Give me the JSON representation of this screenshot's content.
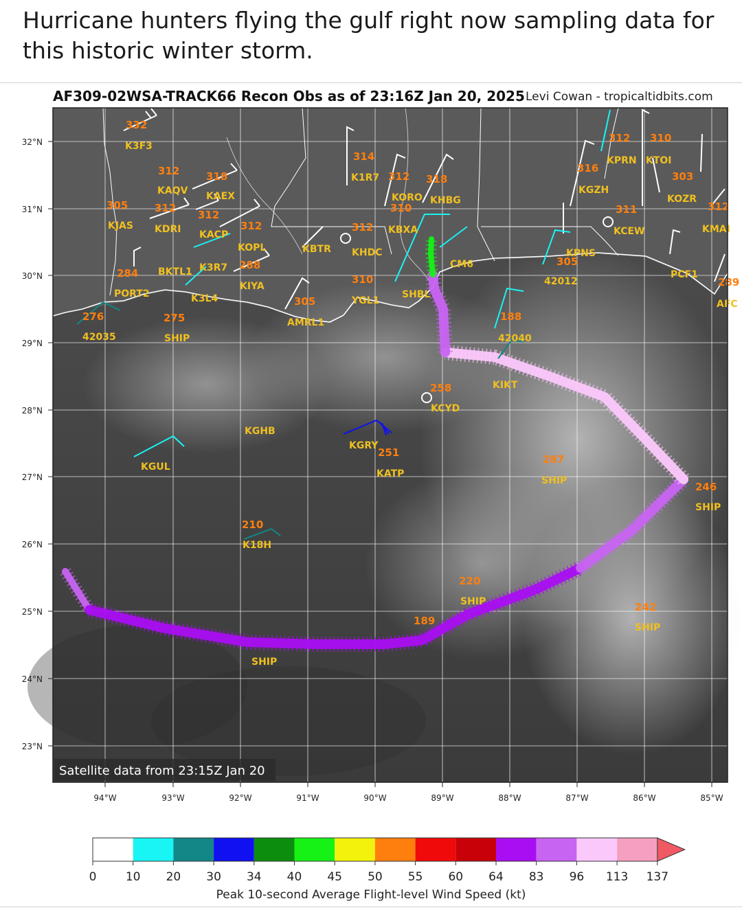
{
  "caption": "Hurricane hunters flying the gulf right now sampling data for this historic winter storm.",
  "figure": {
    "title": "AF309-02WSA-TRACK66 Recon Obs as of 23:16Z Jan 20, 2025",
    "credit": "Levi Cowan - tropicaltidbits.com",
    "satellite_note": "Satellite data from 23:15Z Jan 20"
  },
  "map": {
    "lat_labels": [
      "32°N",
      "31°N",
      "30°N",
      "29°N",
      "28°N",
      "27°N",
      "26°N",
      "25°N",
      "24°N",
      "23°N"
    ],
    "lon_labels": [
      "94°W",
      "93°W",
      "92°W",
      "91°W",
      "90°W",
      "89°W",
      "88°W",
      "87°W",
      "86°W",
      "85°W"
    ],
    "station_labels": [
      "K3F3",
      "KAQV",
      "KAEX",
      "KJAS",
      "KDRI",
      "KACP",
      "KOPL",
      "BKTL1",
      "K3R7",
      "PORT2",
      "KIYA",
      "K3L4",
      "42035",
      "SHIP",
      "KBTR",
      "KHDC",
      "K1R7",
      "KORO",
      "KHBG",
      "KBXA",
      "KGZH",
      "KPRN",
      "KTOI",
      "KOZR",
      "KCEW",
      "KMAI",
      "KPNS",
      "42012",
      "PCF1",
      "AFC",
      "AMRL1",
      "YGL1",
      "SHBL",
      "CM6",
      "42040",
      "KIKT",
      "KCYD",
      "KGHB",
      "KGRY",
      "KATP",
      "KGUL",
      "K18H",
      "SHIP",
      "SHIP",
      "SHIP",
      "SHIP",
      "SHIP"
    ],
    "value_labels": [
      "332",
      "312",
      "318",
      "305",
      "312",
      "312",
      "312",
      "284",
      "288",
      "276",
      "275",
      "312",
      "305",
      "314",
      "310",
      "312",
      "318",
      "310",
      "316",
      "312",
      "303",
      "311",
      "305",
      "289",
      "251",
      "287",
      "246",
      "210",
      "220",
      "189",
      "242",
      "188",
      "258",
      "312",
      "310"
    ]
  },
  "legend": {
    "title": "Peak 10-second Average Flight-level Wind Speed (kt)",
    "ticks": [
      "0",
      "10",
      "20",
      "30",
      "34",
      "40",
      "45",
      "50",
      "55",
      "60",
      "64",
      "83",
      "96",
      "113",
      "137"
    ],
    "colors": [
      "#ffffff",
      "#19f4f4",
      "#138787",
      "#1010f0",
      "#0d8d0d",
      "#16f216",
      "#f2f20d",
      "#ff7f0e",
      "#f00a0a",
      "#c80008",
      "#a90ef2",
      "#c864f2",
      "#fbc8fb",
      "#f5a0c0",
      "#f05a64"
    ]
  }
}
